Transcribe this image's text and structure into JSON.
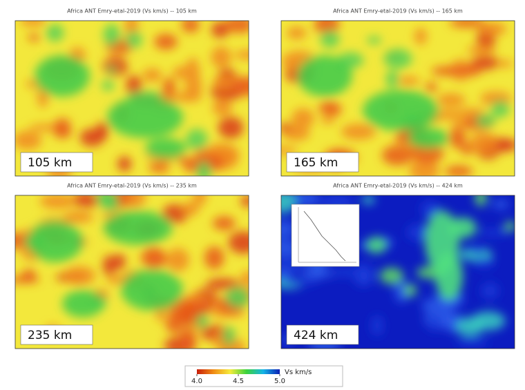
{
  "panels": [
    {
      "title": "Africa ANT Emry-etal-2019 (Vs km/s) -- 105 km",
      "depth_label": "105 km"
    },
    {
      "title": "Africa ANT Emry-etal-2019 (Vs km/s) -- 165 km",
      "depth_label": "165 km"
    },
    {
      "title": "Africa ANT Emry-etal-2019 (Vs km/s) -- 235 km",
      "depth_label": "235 km"
    },
    {
      "title": "Africa ANT Emry-etal-2019 (Vs km/s) -- 424 km",
      "depth_label": "424 km"
    }
  ],
  "colorbar": {
    "label": "Vs km/s",
    "lim": [
      4.0,
      5.0
    ],
    "ticks": [
      {
        "value": 4.0,
        "label": "4.0"
      },
      {
        "value": 4.5,
        "label": "4.5"
      },
      {
        "value": 5.0,
        "label": "5.0"
      }
    ],
    "colors": [
      "#c81e0a",
      "#f08c14",
      "#f5eb3c",
      "#3cd23c",
      "#14b4e6",
      "#0a1eb4"
    ]
  }
}
